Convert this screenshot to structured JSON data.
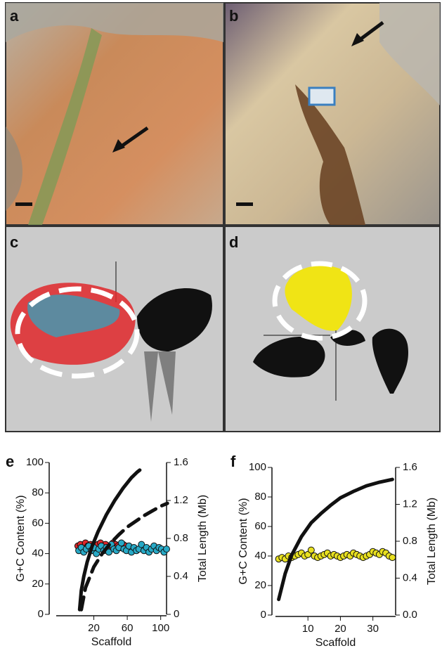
{
  "panels": [
    {
      "label": "a"
    },
    {
      "label": "b"
    },
    {
      "label": "c"
    },
    {
      "label": "d"
    }
  ],
  "chart_data": [
    {
      "type": "scatter",
      "label": "e",
      "xlabel": "Scaffold",
      "ylabel": "G+C Content (%)",
      "y2label": "Total Length (Mb)",
      "xlim": [
        -25,
        107
      ],
      "xticks": [
        20,
        60,
        100
      ],
      "ylim": [
        0,
        100
      ],
      "yticks": [
        0,
        20,
        40,
        60,
        80,
        100
      ],
      "y2lim": [
        0,
        1.6
      ],
      "y2ticks": [
        0,
        0.4,
        0.8,
        1.2,
        1.6
      ],
      "series": [
        {
          "mode": "markers",
          "color": "#e0282b",
          "x": [
            1,
            4,
            7,
            10,
            13,
            16,
            19,
            22,
            25,
            28,
            31,
            34,
            37,
            40,
            43,
            46,
            49,
            52,
            55,
            58
          ],
          "values": [
            45,
            46,
            44,
            47,
            45,
            46,
            45,
            44,
            46,
            47,
            45,
            46,
            44,
            45,
            47,
            46,
            45,
            44,
            46,
            45
          ]
        },
        {
          "mode": "markers",
          "color": "#27a9c6",
          "x": [
            2,
            5,
            8,
            11,
            14,
            17,
            20,
            23,
            26,
            29,
            32,
            35,
            38,
            41,
            44,
            47,
            50,
            53,
            56,
            59,
            62,
            65,
            68,
            71,
            74,
            77,
            80,
            83,
            86,
            89,
            92,
            95,
            98,
            101,
            104,
            107
          ],
          "values": [
            42,
            44,
            41,
            43,
            45,
            42,
            44,
            40,
            43,
            45,
            42,
            44,
            41,
            46,
            43,
            42,
            44,
            47,
            43,
            42,
            45,
            41,
            44,
            42,
            43,
            46,
            42,
            44,
            41,
            43,
            45,
            42,
            44,
            43,
            41,
            43
          ]
        },
        {
          "mode": "line",
          "axis": "y2",
          "color": "#111111",
          "x": [
            3,
            5,
            8,
            12,
            18,
            25,
            35,
            45,
            55,
            65,
            72,
            75
          ],
          "values": [
            0.05,
            0.25,
            0.4,
            0.55,
            0.72,
            0.87,
            1.05,
            1.2,
            1.33,
            1.44,
            1.5,
            1.52
          ]
        },
        {
          "mode": "line",
          "axis": "y2",
          "dash": true,
          "color": "#111111",
          "x": [
            5,
            10,
            20,
            30,
            40,
            50,
            60,
            70,
            80,
            90,
            100,
            108
          ],
          "values": [
            0.05,
            0.28,
            0.5,
            0.64,
            0.75,
            0.84,
            0.92,
            0.98,
            1.04,
            1.09,
            1.14,
            1.17
          ]
        }
      ]
    },
    {
      "type": "scatter",
      "label": "f",
      "xlabel": "Scaffold",
      "ylabel": "G+C Content (%)",
      "y2label": "Total Length (Mb)",
      "xlim": [
        0,
        37
      ],
      "xticks": [
        10,
        20,
        30
      ],
      "ylim": [
        0,
        100
      ],
      "yticks": [
        0,
        20,
        40,
        60,
        80,
        100
      ],
      "y2lim": [
        0,
        1.6
      ],
      "y2ticks": [
        {
          "value": 0,
          "label": "0.0"
        },
        0.4,
        0.8,
        1.2,
        1.6
      ],
      "series": [
        {
          "mode": "markers",
          "color": "#e8e020",
          "x": [
            1,
            2,
            3,
            4,
            5,
            6,
            7,
            8,
            9,
            10,
            11,
            12,
            13,
            14,
            15,
            16,
            17,
            18,
            19,
            20,
            21,
            22,
            23,
            24,
            25,
            26,
            27,
            28,
            29,
            30,
            31,
            32,
            33,
            34,
            35,
            36
          ],
          "values": [
            38,
            39,
            38,
            40,
            39,
            40,
            41,
            42,
            40,
            41,
            44,
            40,
            39,
            40,
            41,
            42,
            40,
            41,
            40,
            39,
            40,
            41,
            40,
            42,
            41,
            40,
            39,
            40,
            41,
            43,
            42,
            41,
            43,
            42,
            40,
            39
          ]
        },
        {
          "mode": "line",
          "axis": "y2",
          "color": "#111111",
          "x": [
            1,
            3,
            5,
            8,
            11,
            14,
            17,
            20,
            24,
            28,
            32,
            36
          ],
          "values": [
            0.17,
            0.45,
            0.65,
            0.85,
            1.0,
            1.1,
            1.19,
            1.27,
            1.34,
            1.4,
            1.44,
            1.47
          ]
        }
      ]
    }
  ]
}
